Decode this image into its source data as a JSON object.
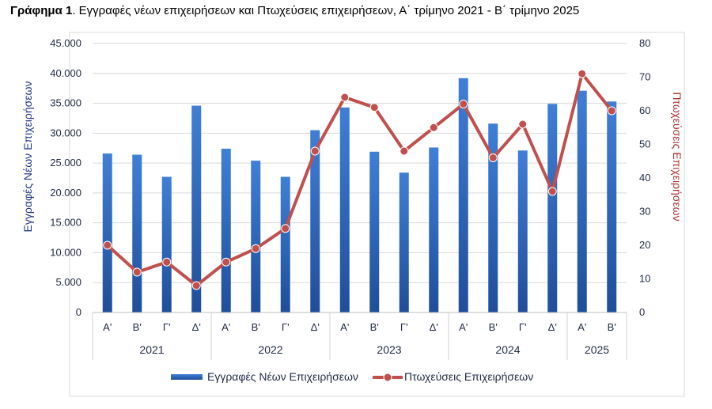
{
  "caption": {
    "bold": "Γράφημα 1",
    "rest": ". Εγγραφές νέων επιχειρήσεων και Πτωχεύσεις επιχειρήσεων, Α΄ τρίμηνο 2021 - Β΄ τρίμηνο 2025"
  },
  "chart_data": {
    "type": "bar",
    "categories": [
      "Α'",
      "Β'",
      "Γ'",
      "Δ'",
      "Α'",
      "Β'",
      "Γ'",
      "Δ'",
      "Α'",
      "Β'",
      "Γ'",
      "Δ'",
      "Α'",
      "Β'",
      "Γ'",
      "Δ'",
      "Α'",
      "Β'"
    ],
    "groups": [
      {
        "label": "2021",
        "count": 4
      },
      {
        "label": "2022",
        "count": 4
      },
      {
        "label": "2023",
        "count": 4
      },
      {
        "label": "2024",
        "count": 4
      },
      {
        "label": "2025",
        "count": 2
      }
    ],
    "series": [
      {
        "name": "Εγγραφές Νέων Επιχειρήσεων",
        "type": "bar",
        "axis": "left",
        "color": "#2e6bc0",
        "values": [
          26600,
          26400,
          22700,
          34600,
          27400,
          25400,
          22700,
          30500,
          34300,
          26900,
          23400,
          27600,
          39200,
          31600,
          27100,
          34900,
          37100,
          35300
        ]
      },
      {
        "name": "Πτωχεύσεις Επιχειρήσεων",
        "type": "line",
        "axis": "right",
        "color": "#c0504d",
        "values": [
          20,
          12,
          15,
          8,
          15,
          19,
          25,
          48,
          64,
          61,
          48,
          55,
          62,
          46,
          56,
          36,
          71,
          60
        ]
      }
    ],
    "ylabel_left": "Εγγραφές Νέων Επιχειρήσεων",
    "ylabel_right": "Πτωχεύσεις Επιχειρήσεων",
    "ylim_left": [
      0,
      45000
    ],
    "ylim_right": [
      0,
      80
    ],
    "yticks_left": [
      "0",
      "5.000",
      "10.000",
      "15.000",
      "20.000",
      "25.000",
      "30.000",
      "35.000",
      "40.000",
      "45.000"
    ],
    "yticks_right": [
      "0",
      "10",
      "20",
      "30",
      "40",
      "50",
      "60",
      "70",
      "80"
    ],
    "grid": true,
    "legend_position": "bottom"
  }
}
